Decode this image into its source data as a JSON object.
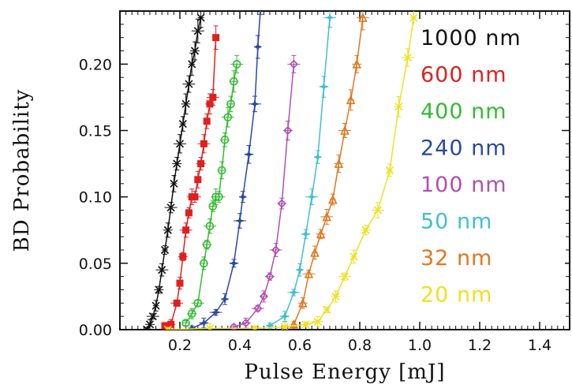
{
  "chart_data": {
    "type": "line",
    "title": "",
    "xlabel": "Pulse Energy [mJ]",
    "ylabel": "BD Probability",
    "xlim": [
      0.0,
      1.5
    ],
    "ylim": [
      0.0,
      0.24
    ],
    "x_ticks": [
      "0.2",
      "0.4",
      "0.6",
      "0.8",
      "1.0",
      "1.2",
      "1.4"
    ],
    "y_ticks": [
      "0.00",
      "0.05",
      "0.10",
      "0.15",
      "0.20"
    ],
    "grid": false,
    "legend_position": "right",
    "series": [
      {
        "name": "1000 nm",
        "color": "#111111",
        "marker": "x",
        "x": [
          0.09,
          0.1,
          0.11,
          0.12,
          0.13,
          0.14,
          0.15,
          0.16,
          0.17,
          0.18,
          0.19,
          0.2,
          0.21,
          0.22,
          0.23,
          0.24,
          0.25,
          0.26,
          0.27
        ],
        "y": [
          0.0,
          0.004,
          0.01,
          0.018,
          0.03,
          0.045,
          0.06,
          0.075,
          0.092,
          0.11,
          0.125,
          0.14,
          0.155,
          0.17,
          0.185,
          0.2,
          0.21,
          0.225,
          0.235
        ]
      },
      {
        "name": "600 nm",
        "color": "#e02020",
        "marker": "square",
        "x": [
          0.15,
          0.17,
          0.19,
          0.2,
          0.21,
          0.22,
          0.23,
          0.24,
          0.25,
          0.26,
          0.27,
          0.28,
          0.29,
          0.3,
          0.31,
          0.32
        ],
        "y": [
          0.003,
          0.004,
          0.02,
          0.035,
          0.055,
          0.075,
          0.088,
          0.1,
          0.1,
          0.113,
          0.125,
          0.14,
          0.157,
          0.17,
          0.175,
          0.22
        ]
      },
      {
        "name": "400 nm",
        "color": "#33bb33",
        "marker": "circle",
        "x": [
          0.22,
          0.24,
          0.26,
          0.28,
          0.29,
          0.3,
          0.31,
          0.32,
          0.33,
          0.34,
          0.35,
          0.36,
          0.37,
          0.38,
          0.39
        ],
        "y": [
          0.005,
          0.012,
          0.02,
          0.05,
          0.064,
          0.078,
          0.093,
          0.1,
          0.1,
          0.12,
          0.143,
          0.16,
          0.17,
          0.187,
          0.2
        ]
      },
      {
        "name": "240 nm",
        "color": "#2a4a9e",
        "marker": "star",
        "x": [
          0.24,
          0.28,
          0.32,
          0.35,
          0.38,
          0.4,
          0.41,
          0.43,
          0.45,
          0.46,
          0.47
        ],
        "y": [
          0.001,
          0.005,
          0.013,
          0.023,
          0.05,
          0.082,
          0.1,
          0.132,
          0.17,
          0.213,
          0.245
        ]
      },
      {
        "name": "100 nm",
        "color": "#b050b0",
        "marker": "diamond",
        "x": [
          0.38,
          0.42,
          0.46,
          0.48,
          0.5,
          0.52,
          0.54,
          0.56,
          0.58
        ],
        "y": [
          0.002,
          0.005,
          0.016,
          0.025,
          0.04,
          0.06,
          0.095,
          0.15,
          0.2
        ]
      },
      {
        "name": "50 nm",
        "color": "#40c0d0",
        "marker": "star",
        "x": [
          0.5,
          0.55,
          0.58,
          0.6,
          0.62,
          0.64,
          0.66,
          0.68,
          0.7
        ],
        "y": [
          0.003,
          0.01,
          0.028,
          0.045,
          0.072,
          0.1,
          0.13,
          0.183,
          0.235
        ]
      },
      {
        "name": "32 nm",
        "color": "#e07820",
        "marker": "triangle",
        "x": [
          0.58,
          0.61,
          0.63,
          0.65,
          0.67,
          0.69,
          0.71,
          0.73,
          0.75,
          0.77,
          0.79,
          0.81
        ],
        "y": [
          0.004,
          0.02,
          0.042,
          0.058,
          0.072,
          0.085,
          0.098,
          0.125,
          0.15,
          0.173,
          0.2,
          0.235
        ]
      },
      {
        "name": "20 nm",
        "color": "#f0e020",
        "marker": "x",
        "x": [
          0.16,
          0.3,
          0.45,
          0.55,
          0.62,
          0.66,
          0.69,
          0.72,
          0.75,
          0.78,
          0.82,
          0.86,
          0.9,
          0.93,
          0.96,
          0.98
        ],
        "y": [
          0.0,
          0.001,
          0.001,
          0.002,
          0.004,
          0.006,
          0.015,
          0.025,
          0.04,
          0.055,
          0.075,
          0.09,
          0.12,
          0.168,
          0.205,
          0.235
        ]
      }
    ]
  }
}
